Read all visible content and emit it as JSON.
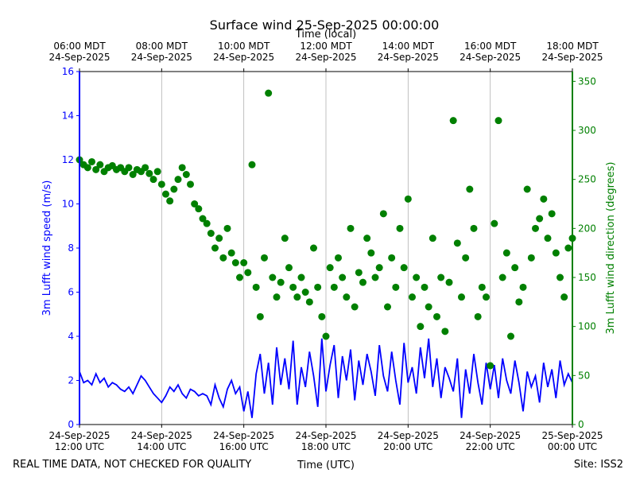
{
  "chart_data": {
    "type": "line",
    "title": "Surface wind 25-Sep-2025 00:00:00",
    "x2label": "Time (local)",
    "xlabel": "Time (UTC)",
    "ylabel": "3m Lufft wind speed (m/s)",
    "y2label": "3m Lufft wind direction (degrees)",
    "footer_left": "REAL TIME DATA, NOT CHECKED FOR QUALITY",
    "footer_right": "Site: ISS2",
    "grid": true,
    "xlim": [
      12,
      24
    ],
    "xticks": [
      {
        "value": 12,
        "label": "24-Sep-2025\n12:00 UTC"
      },
      {
        "value": 14,
        "label": "24-Sep-2025\n14:00 UTC"
      },
      {
        "value": 16,
        "label": "24-Sep-2025\n16:00 UTC"
      },
      {
        "value": 18,
        "label": "24-Sep-2025\n18:00 UTC"
      },
      {
        "value": 20,
        "label": "24-Sep-2025\n20:00 UTC"
      },
      {
        "value": 22,
        "label": "24-Sep-2025\n22:00 UTC"
      },
      {
        "value": 24,
        "label": "25-Sep-2025\n00:00 UTC"
      }
    ],
    "x2ticks": [
      {
        "value": 12,
        "label": "06:00 MDT\n24-Sep-2025"
      },
      {
        "value": 14,
        "label": "08:00 MDT\n24-Sep-2025"
      },
      {
        "value": 16,
        "label": "10:00 MDT\n24-Sep-2025"
      },
      {
        "value": 18,
        "label": "12:00 MDT\n24-Sep-2025"
      },
      {
        "value": 20,
        "label": "14:00 MDT\n24-Sep-2025"
      },
      {
        "value": 22,
        "label": "16:00 MDT\n24-Sep-2025"
      },
      {
        "value": 24,
        "label": "18:00 MDT\n24-Sep-2025"
      }
    ],
    "ylim": [
      0,
      16
    ],
    "yticks": [
      0,
      2,
      4,
      6,
      8,
      10,
      12,
      14,
      16
    ],
    "y2lim": [
      0,
      360
    ],
    "y2ticks": [
      0,
      50,
      100,
      150,
      200,
      250,
      300,
      350
    ],
    "x": [
      12.0,
      12.1,
      12.2,
      12.3,
      12.4,
      12.5,
      12.6,
      12.7,
      12.8,
      12.9,
      13.0,
      13.1,
      13.2,
      13.3,
      13.4,
      13.5,
      13.6,
      13.7,
      13.8,
      13.9,
      14.0,
      14.1,
      14.2,
      14.3,
      14.4,
      14.5,
      14.6,
      14.7,
      14.8,
      14.9,
      15.0,
      15.1,
      15.2,
      15.3,
      15.4,
      15.5,
      15.6,
      15.7,
      15.8,
      15.9,
      16.0,
      16.1,
      16.2,
      16.3,
      16.4,
      16.5,
      16.6,
      16.7,
      16.8,
      16.9,
      17.0,
      17.1,
      17.2,
      17.3,
      17.4,
      17.5,
      17.6,
      17.7,
      17.8,
      17.9,
      18.0,
      18.1,
      18.2,
      18.3,
      18.4,
      18.5,
      18.6,
      18.7,
      18.8,
      18.9,
      19.0,
      19.1,
      19.2,
      19.3,
      19.4,
      19.5,
      19.6,
      19.7,
      19.8,
      19.9,
      20.0,
      20.1,
      20.2,
      20.3,
      20.4,
      20.5,
      20.6,
      20.7,
      20.8,
      20.9,
      21.0,
      21.1,
      21.2,
      21.3,
      21.4,
      21.5,
      21.6,
      21.7,
      21.8,
      21.9,
      22.0,
      22.1,
      22.2,
      22.3,
      22.4,
      22.5,
      22.6,
      22.7,
      22.8,
      22.9,
      23.0,
      23.1,
      23.2,
      23.3,
      23.4,
      23.5,
      23.6,
      23.7,
      23.8,
      23.9,
      24.0
    ],
    "series": [
      {
        "color": "#0000ff",
        "axis": "y",
        "type": "line",
        "values": [
          2.4,
          1.9,
          2.0,
          1.8,
          2.3,
          1.9,
          2.1,
          1.7,
          1.9,
          1.8,
          1.6,
          1.5,
          1.7,
          1.4,
          1.8,
          2.2,
          2.0,
          1.7,
          1.4,
          1.2,
          1.0,
          1.3,
          1.7,
          1.5,
          1.8,
          1.4,
          1.2,
          1.6,
          1.5,
          1.3,
          1.4,
          1.3,
          0.9,
          1.8,
          1.2,
          0.8,
          1.6,
          2.0,
          1.4,
          1.7,
          0.6,
          1.5,
          0.3,
          2.3,
          3.2,
          1.4,
          2.8,
          0.9,
          3.5,
          1.8,
          3.0,
          1.6,
          3.8,
          0.9,
          2.6,
          1.7,
          3.3,
          2.2,
          0.8,
          3.9,
          1.5,
          2.7,
          3.6,
          1.2,
          3.1,
          2.0,
          3.4,
          1.1,
          2.9,
          1.8,
          3.2,
          2.4,
          1.3,
          3.6,
          2.2,
          1.5,
          3.3,
          2.0,
          0.9,
          3.7,
          1.9,
          2.6,
          1.4,
          3.5,
          2.1,
          3.9,
          1.7,
          3.0,
          1.2,
          2.6,
          2.1,
          1.5,
          3.0,
          0.3,
          2.5,
          1.4,
          3.2,
          1.9,
          0.9,
          2.8,
          1.6,
          2.7,
          1.2,
          3.0,
          2.0,
          1.4,
          2.9,
          1.9,
          0.6,
          2.4,
          1.7,
          2.2,
          1.0,
          2.8,
          1.7,
          2.5,
          1.2,
          2.9,
          1.8,
          2.3,
          1.9
        ]
      },
      {
        "color": "#008000",
        "axis": "y2",
        "type": "scatter",
        "values": [
          270,
          265,
          262,
          268,
          260,
          265,
          258,
          262,
          264,
          260,
          262,
          258,
          262,
          255,
          260,
          258,
          262,
          256,
          250,
          258,
          245,
          235,
          228,
          240,
          250,
          262,
          255,
          245,
          225,
          220,
          210,
          205,
          195,
          180,
          190,
          170,
          200,
          175,
          165,
          150,
          165,
          155,
          265,
          140,
          110,
          170,
          338,
          150,
          130,
          145,
          190,
          160,
          140,
          130,
          150,
          135,
          125,
          180,
          140,
          110,
          90,
          160,
          140,
          170,
          150,
          130,
          200,
          120,
          155,
          145,
          190,
          175,
          150,
          160,
          215,
          120,
          170,
          140,
          200,
          160,
          230,
          130,
          150,
          100,
          140,
          120,
          190,
          110,
          150,
          95,
          145,
          310,
          185,
          130,
          170,
          240,
          200,
          110,
          140,
          130,
          60,
          205,
          310,
          150,
          175,
          90,
          160,
          125,
          140,
          240,
          170,
          200,
          210,
          230,
          190,
          215,
          175,
          150,
          130,
          180,
          190
        ]
      }
    ]
  }
}
